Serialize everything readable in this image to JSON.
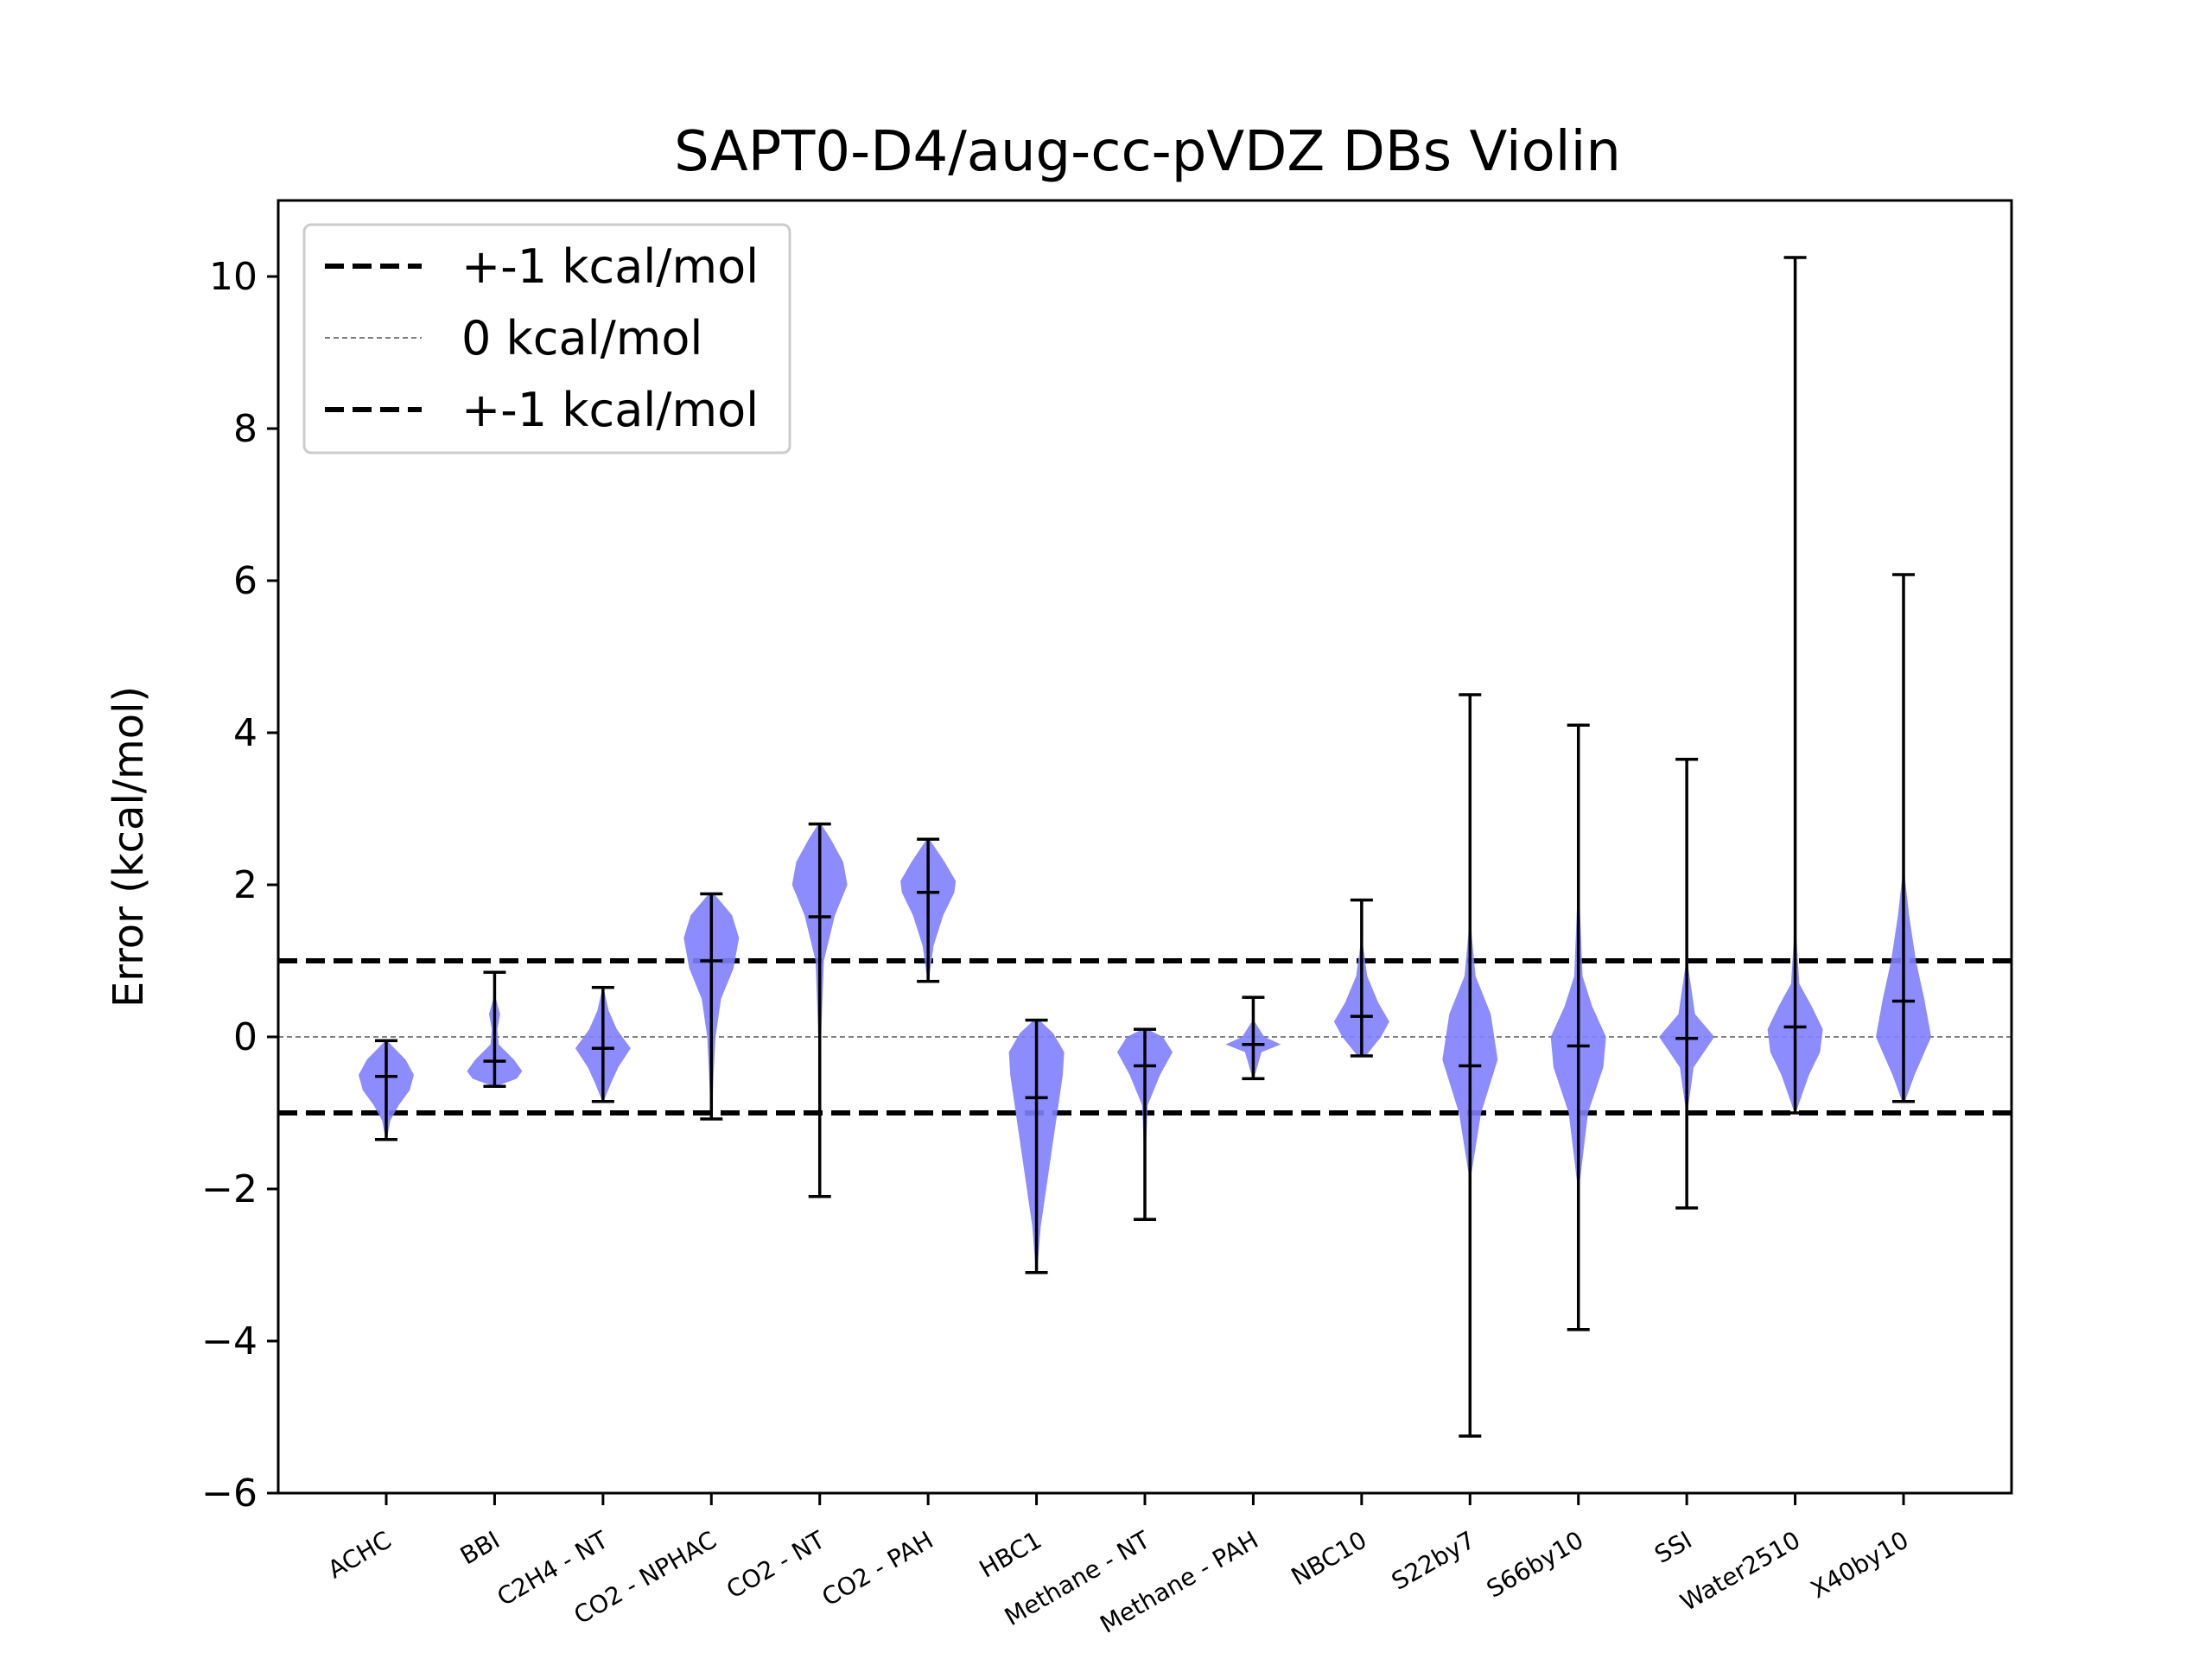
{
  "chart_data": {
    "type": "violin",
    "title": "SAPT0-D4/aug-cc-pVDZ DBs Violin",
    "xlabel": "",
    "ylabel": "Error (kcal/mol)",
    "ylim": [
      -6,
      11
    ],
    "yticks": [
      -6,
      -4,
      -2,
      0,
      2,
      4,
      6,
      8,
      10
    ],
    "ytick_labels": [
      "−6",
      "−4",
      "−2",
      "0",
      "2",
      "4",
      "6",
      "8",
      "10"
    ],
    "grid": false,
    "legend_position": "upper-left",
    "legend": [
      {
        "label": "+-1 kcal/mol",
        "style": "dashed-thick"
      },
      {
        "label": "0 kcal/mol",
        "style": "dashed-thin-gray"
      },
      {
        "label": "+-1 kcal/mol",
        "style": "dashed-thick"
      }
    ],
    "reference_lines": [
      1,
      0,
      -1
    ],
    "colors": {
      "violin": "#7f7fff",
      "lines": "#000000",
      "zero_line": "#808080"
    },
    "categories": [
      "ACHC",
      "BBI",
      "C2H4 - NT",
      "CO2 - NPHAC",
      "CO2 - NT",
      "CO2 - PAH",
      "HBC1",
      "Methane - NT",
      "Methane - PAH",
      "NBC10",
      "S22by7",
      "S66by10",
      "SSI",
      "Water2510",
      "X40by10"
    ],
    "series": [
      {
        "min": -1.35,
        "max": -0.05,
        "mean": -0.52,
        "density": [
          [
            -1.35,
            0.02
          ],
          [
            -1.1,
            0.15
          ],
          [
            -0.9,
            0.45
          ],
          [
            -0.7,
            0.85
          ],
          [
            -0.5,
            1.0
          ],
          [
            -0.3,
            0.7
          ],
          [
            -0.15,
            0.3
          ],
          [
            -0.05,
            0.03
          ]
        ]
      },
      {
        "min": -0.65,
        "max": 0.85,
        "mean": -0.32,
        "density": [
          [
            -0.65,
            0.05
          ],
          [
            -0.55,
            0.8
          ],
          [
            -0.45,
            1.0
          ],
          [
            -0.3,
            0.7
          ],
          [
            -0.1,
            0.15
          ],
          [
            0.1,
            0.1
          ],
          [
            0.3,
            0.2
          ],
          [
            0.5,
            0.05
          ],
          [
            0.85,
            0.02
          ]
        ]
      },
      {
        "min": -0.85,
        "max": 0.65,
        "mean": -0.15,
        "density": [
          [
            -0.85,
            0.02
          ],
          [
            -0.6,
            0.3
          ],
          [
            -0.4,
            0.55
          ],
          [
            -0.15,
            1.0
          ],
          [
            0.1,
            0.5
          ],
          [
            0.35,
            0.2
          ],
          [
            0.65,
            0.02
          ]
        ]
      },
      {
        "min": -1.08,
        "max": 1.88,
        "mean": 1.0,
        "density": [
          [
            -1.08,
            0.02
          ],
          [
            -0.5,
            0.08
          ],
          [
            0.0,
            0.15
          ],
          [
            0.5,
            0.35
          ],
          [
            0.9,
            0.8
          ],
          [
            1.3,
            1.0
          ],
          [
            1.6,
            0.75
          ],
          [
            1.88,
            0.1
          ]
        ]
      },
      {
        "min": -2.1,
        "max": 2.8,
        "mean": 1.58,
        "density": [
          [
            -2.1,
            0.01
          ],
          [
            -1.0,
            0.02
          ],
          [
            0.0,
            0.05
          ],
          [
            1.0,
            0.15
          ],
          [
            1.6,
            0.55
          ],
          [
            2.0,
            1.0
          ],
          [
            2.3,
            0.85
          ],
          [
            2.6,
            0.4
          ],
          [
            2.8,
            0.05
          ]
        ]
      },
      {
        "min": 0.73,
        "max": 2.6,
        "mean": 1.9,
        "density": [
          [
            0.73,
            0.02
          ],
          [
            1.2,
            0.2
          ],
          [
            1.6,
            0.55
          ],
          [
            1.9,
            0.95
          ],
          [
            2.05,
            1.0
          ],
          [
            2.3,
            0.6
          ],
          [
            2.6,
            0.05
          ]
        ]
      },
      {
        "min": -3.1,
        "max": 0.22,
        "mean": -0.8,
        "density": [
          [
            -3.1,
            0.02
          ],
          [
            -2.5,
            0.15
          ],
          [
            -2.0,
            0.35
          ],
          [
            -1.5,
            0.55
          ],
          [
            -1.0,
            0.75
          ],
          [
            -0.5,
            0.95
          ],
          [
            -0.2,
            1.0
          ],
          [
            0.05,
            0.6
          ],
          [
            0.22,
            0.1
          ]
        ]
      },
      {
        "min": -2.4,
        "max": 0.1,
        "mean": -0.38,
        "density": [
          [
            -2.4,
            0.01
          ],
          [
            -1.5,
            0.03
          ],
          [
            -0.9,
            0.1
          ],
          [
            -0.5,
            0.55
          ],
          [
            -0.2,
            1.0
          ],
          [
            0.0,
            0.65
          ],
          [
            0.1,
            0.1
          ]
        ]
      },
      {
        "min": -0.55,
        "max": 0.52,
        "mean": -0.1,
        "density": [
          [
            -0.55,
            0.02
          ],
          [
            -0.2,
            0.3
          ],
          [
            -0.1,
            1.0
          ],
          [
            0.0,
            0.4
          ],
          [
            0.2,
            0.05
          ],
          [
            0.52,
            0.02
          ]
        ]
      },
      {
        "min": -0.25,
        "max": 1.8,
        "mean": 0.27,
        "density": [
          [
            -0.25,
            0.15
          ],
          [
            0.0,
            0.7
          ],
          [
            0.2,
            1.0
          ],
          [
            0.45,
            0.6
          ],
          [
            0.8,
            0.2
          ],
          [
            1.2,
            0.05
          ],
          [
            1.8,
            0.01
          ]
        ]
      },
      {
        "min": -5.25,
        "max": 4.5,
        "mean": -0.38,
        "density": [
          [
            -5.25,
            0.0
          ],
          [
            -3.0,
            0.01
          ],
          [
            -1.8,
            0.05
          ],
          [
            -1.0,
            0.4
          ],
          [
            -0.3,
            1.0
          ],
          [
            0.3,
            0.75
          ],
          [
            0.8,
            0.2
          ],
          [
            1.5,
            0.02
          ],
          [
            4.5,
            0.0
          ]
        ]
      },
      {
        "min": -3.85,
        "max": 4.1,
        "mean": -0.12,
        "density": [
          [
            -3.85,
            0.0
          ],
          [
            -2.0,
            0.02
          ],
          [
            -1.0,
            0.35
          ],
          [
            -0.4,
            0.9
          ],
          [
            0.0,
            1.0
          ],
          [
            0.4,
            0.5
          ],
          [
            0.8,
            0.15
          ],
          [
            2.0,
            0.02
          ],
          [
            4.1,
            0.0
          ]
        ]
      },
      {
        "min": -2.25,
        "max": 3.65,
        "mean": -0.02,
        "density": [
          [
            -2.25,
            0.0
          ],
          [
            -1.0,
            0.02
          ],
          [
            -0.4,
            0.25
          ],
          [
            0.0,
            1.0
          ],
          [
            0.3,
            0.3
          ],
          [
            1.0,
            0.02
          ],
          [
            3.65,
            0.0
          ]
        ]
      },
      {
        "min": -1.0,
        "max": 10.25,
        "mean": 0.13,
        "density": [
          [
            -1.0,
            0.02
          ],
          [
            -0.5,
            0.5
          ],
          [
            -0.2,
            0.9
          ],
          [
            0.1,
            1.0
          ],
          [
            0.4,
            0.6
          ],
          [
            0.7,
            0.15
          ],
          [
            1.5,
            0.01
          ],
          [
            10.25,
            0.0
          ]
        ]
      },
      {
        "min": -0.85,
        "max": 6.08,
        "mean": 0.47,
        "density": [
          [
            -0.85,
            0.05
          ],
          [
            -0.5,
            0.4
          ],
          [
            0.0,
            1.0
          ],
          [
            0.5,
            0.75
          ],
          [
            1.0,
            0.45
          ],
          [
            1.6,
            0.2
          ],
          [
            2.1,
            0.05
          ],
          [
            3.0,
            0.01
          ],
          [
            6.08,
            0.0
          ]
        ]
      }
    ]
  }
}
